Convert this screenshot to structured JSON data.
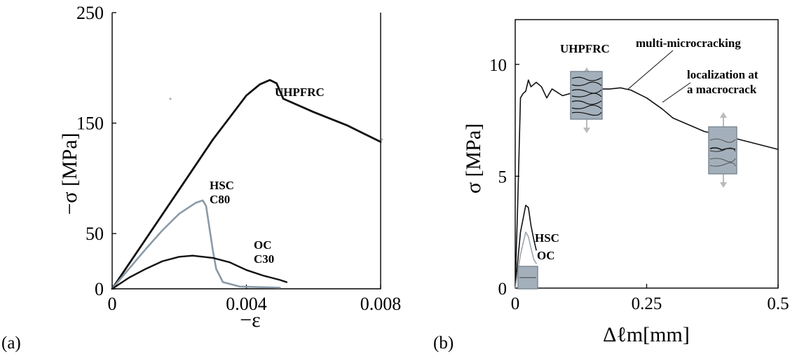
{
  "chart_data": [
    {
      "panel_label": "(a)",
      "type": "line",
      "xlabel": "−ε",
      "ylabel": "−σ [MPa]",
      "xlim": [
        0,
        0.008
      ],
      "ylim": [
        0,
        250
      ],
      "x_ticks": [
        0,
        0.004,
        0.008
      ],
      "x_tick_labels": [
        "0",
        "0.004",
        "0.008"
      ],
      "y_ticks": [
        0,
        50,
        150,
        250
      ],
      "y_tick_labels": [
        "0",
        "50",
        "150",
        "250"
      ],
      "frame": "left-bottom-right",
      "grid": false,
      "series": [
        {
          "name": "UHPFRC",
          "color": "#111111",
          "points": [
            [
              0,
              0
            ],
            [
              0.001,
              45
            ],
            [
              0.002,
              90
            ],
            [
              0.003,
              135
            ],
            [
              0.0035,
              155
            ],
            [
              0.004,
              175
            ],
            [
              0.0044,
              185
            ],
            [
              0.0047,
              189
            ],
            [
              0.0049,
              186
            ],
            [
              0.0051,
              172
            ],
            [
              0.006,
              160
            ],
            [
              0.007,
              148
            ],
            [
              0.008,
              133
            ]
          ]
        },
        {
          "name": "HSC C80",
          "color": "#8a9aa8",
          "points": [
            [
              0,
              0
            ],
            [
              0.0005,
              18
            ],
            [
              0.001,
              36
            ],
            [
              0.0015,
              53
            ],
            [
              0.002,
              68
            ],
            [
              0.0025,
              78
            ],
            [
              0.0027,
              80
            ],
            [
              0.0028,
              75
            ],
            [
              0.0029,
              55
            ],
            [
              0.003,
              35
            ],
            [
              0.0031,
              18
            ],
            [
              0.0033,
              6
            ],
            [
              0.0038,
              2
            ],
            [
              0.005,
              1
            ]
          ]
        },
        {
          "name": "OC C30",
          "color": "#111111",
          "points": [
            [
              0,
              0
            ],
            [
              0.0005,
              10
            ],
            [
              0.001,
              18
            ],
            [
              0.0015,
              25
            ],
            [
              0.002,
              29
            ],
            [
              0.0024,
              30
            ],
            [
              0.003,
              28
            ],
            [
              0.0035,
              24
            ],
            [
              0.004,
              17
            ],
            [
              0.0045,
              12
            ],
            [
              0.005,
              8
            ],
            [
              0.0052,
              6
            ]
          ]
        }
      ],
      "annotations": [
        "UHPFRC",
        "HSC",
        "C80",
        "OC",
        "C30"
      ]
    },
    {
      "panel_label": "(b)",
      "type": "line",
      "xlabel": "Δℓm[mm]",
      "ylabel": "σ [MPa]",
      "xlim": [
        0,
        0.5
      ],
      "ylim": [
        0,
        12
      ],
      "x_ticks": [
        0,
        0.25,
        0.5
      ],
      "x_tick_labels": [
        "0",
        "0.25",
        "0.5"
      ],
      "y_ticks": [
        0,
        5,
        10
      ],
      "y_tick_labels": [
        "0",
        "5",
        "10"
      ],
      "frame": "box",
      "grid": false,
      "series": [
        {
          "name": "UHPFRC",
          "color": "#111111",
          "points": [
            [
              0,
              0
            ],
            [
              0.005,
              4
            ],
            [
              0.01,
              8.5
            ],
            [
              0.015,
              8.7
            ],
            [
              0.02,
              8.8
            ],
            [
              0.025,
              9.3
            ],
            [
              0.03,
              9.0
            ],
            [
              0.04,
              9.2
            ],
            [
              0.05,
              9.0
            ],
            [
              0.06,
              8.5
            ],
            [
              0.07,
              8.9
            ],
            [
              0.09,
              8.6
            ],
            [
              0.12,
              8.8
            ],
            [
              0.15,
              8.9
            ],
            [
              0.18,
              8.9
            ],
            [
              0.2,
              8.95
            ],
            [
              0.22,
              8.85
            ],
            [
              0.25,
              8.5
            ],
            [
              0.28,
              8.0
            ],
            [
              0.3,
              7.6
            ],
            [
              0.33,
              7.3
            ],
            [
              0.36,
              7.0
            ],
            [
              0.4,
              6.8
            ],
            [
              0.45,
              6.5
            ],
            [
              0.5,
              6.2
            ]
          ]
        },
        {
          "name": "HSC",
          "color": "#111111",
          "points": [
            [
              0,
              0
            ],
            [
              0.01,
              2.5
            ],
            [
              0.02,
              3.7
            ],
            [
              0.025,
              3.6
            ],
            [
              0.03,
              2.8
            ],
            [
              0.035,
              2.2
            ],
            [
              0.04,
              1.7
            ]
          ]
        },
        {
          "name": "OC",
          "color": "#9aa5ae",
          "points": [
            [
              0,
              0
            ],
            [
              0.01,
              1.5
            ],
            [
              0.02,
              2.5
            ],
            [
              0.025,
              2.3
            ],
            [
              0.03,
              1.8
            ],
            [
              0.035,
              1.3
            ],
            [
              0.04,
              1.1
            ]
          ]
        }
      ],
      "annotations": [
        "UHPFRC",
        "multi-microcracking",
        "localization at",
        "a macrocrack",
        "HSC",
        "OC"
      ]
    }
  ],
  "labels": {
    "a_uhpfrc": "UHPFRC",
    "a_hsc": "HSC",
    "a_c80": "C80",
    "a_oc": "OC",
    "a_c30": "C30",
    "b_uhpfrc": "UHPFRC",
    "b_multi": "multi-microcracking",
    "b_local1": "localization at",
    "b_local2": "a macrocrack",
    "b_hsc": "HSC",
    "b_oc": "OC"
  }
}
